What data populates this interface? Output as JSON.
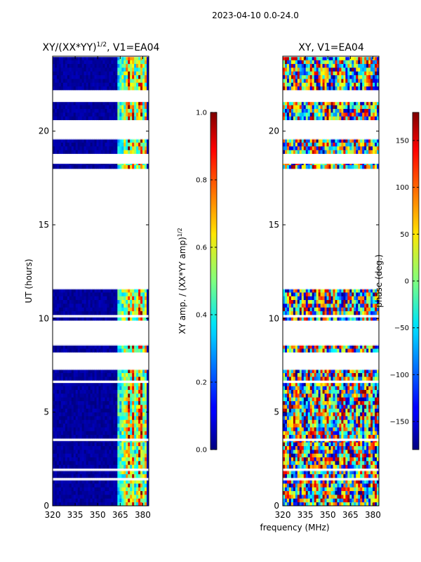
{
  "figure": {
    "suptitle": "2023-04-10 0.0-24.0",
    "xlabel": "frequency (MHz)",
    "ylabel": "UT (hours)"
  },
  "chart_data": [
    {
      "type": "heatmap",
      "title_main": "XY/(XX*YY)",
      "title_exp": "1/2",
      "title_suffix": ", V1=EA04",
      "xlabel": "frequency (MHz)",
      "ylabel": "UT (hours)",
      "xlim": [
        320,
        384
      ],
      "ylim": [
        0,
        24
      ],
      "xticks": [
        320,
        335,
        350,
        365,
        380
      ],
      "yticks": [
        0,
        5,
        10,
        15,
        20
      ],
      "colorbar": {
        "label_main": "XY amp. / (XX*YY amp)",
        "label_exp": "1/2",
        "range": [
          0.0,
          1.0
        ],
        "ticks": [
          "0.0",
          "0.2",
          "0.4",
          "0.6",
          "0.8",
          "1.0"
        ],
        "tick_values": [
          0.0,
          0.2,
          0.4,
          0.6,
          0.8,
          1.0
        ]
      },
      "data_time_ranges_hours": [
        [
          0.0,
          1.4
        ],
        [
          1.5,
          1.9
        ],
        [
          2.0,
          3.5
        ],
        [
          3.6,
          6.6
        ],
        [
          6.7,
          7.3
        ],
        [
          8.2,
          8.6
        ],
        [
          9.9,
          10.1
        ],
        [
          10.2,
          11.6
        ],
        [
          18.0,
          18.3
        ],
        [
          18.8,
          19.6
        ],
        [
          20.6,
          21.6
        ],
        [
          22.2,
          24.0
        ]
      ],
      "frequency_structure": "near-zero amplitude (~0.0-0.1) from 320-362 MHz; bright vertical streaks (~0.3-1.0) from 362-382 MHz"
    },
    {
      "type": "heatmap",
      "title": "XY, V1=EA04",
      "xlabel": "frequency (MHz)",
      "ylabel": "UT (hours)",
      "xlim": [
        320,
        384
      ],
      "ylim": [
        0,
        24
      ],
      "xticks": [
        320,
        335,
        350,
        365,
        380
      ],
      "yticks": [
        0,
        5,
        10,
        15,
        20
      ],
      "colorbar": {
        "label": "phase (deg.)",
        "range": [
          -180,
          180
        ],
        "ticks": [
          "−150",
          "−100",
          "−50",
          "0",
          "50",
          "100",
          "150"
        ],
        "tick_values": [
          -150,
          -100,
          -50,
          0,
          50,
          100,
          150
        ]
      },
      "data_time_ranges_hours": [
        [
          0.0,
          1.4
        ],
        [
          1.5,
          1.9
        ],
        [
          2.0,
          3.5
        ],
        [
          3.6,
          6.6
        ],
        [
          6.7,
          7.3
        ],
        [
          8.2,
          8.6
        ],
        [
          9.9,
          10.1
        ],
        [
          10.2,
          11.6
        ],
        [
          18.0,
          18.3
        ],
        [
          18.8,
          19.6
        ],
        [
          20.6,
          21.6
        ],
        [
          22.2,
          24.0
        ]
      ],
      "frequency_structure": "noisy phase spanning full -180..180 range, vertical banding across band"
    }
  ]
}
